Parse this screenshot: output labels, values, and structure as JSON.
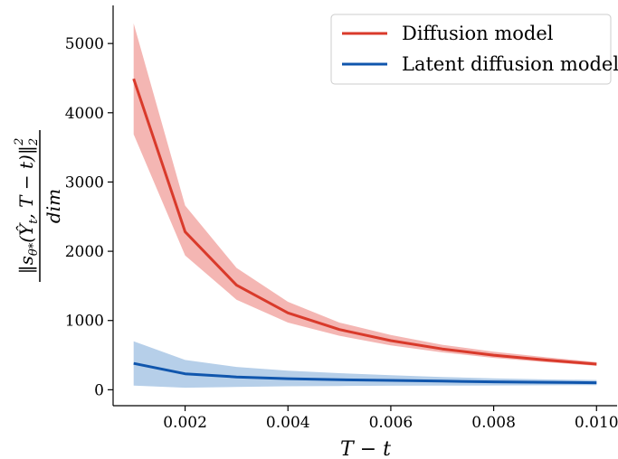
{
  "chart_data": {
    "type": "line",
    "xlabel": "T − t",
    "ylabel": {
      "numerator": "‖s",
      "theta": "θ*",
      "args": "(Ŷ",
      "sub_t": "t",
      "rest": ", T − t)‖",
      "sub2": "2",
      "sup2": "2",
      "denominator": "dim"
    },
    "xlim": [
      0.0006,
      0.0104
    ],
    "ylim": [
      -230,
      5550
    ],
    "xticks": [
      0.002,
      0.004,
      0.006,
      0.008,
      0.01
    ],
    "xtick_labels": [
      "0.002",
      "0.004",
      "0.006",
      "0.008",
      "0.010"
    ],
    "yticks": [
      0,
      1000,
      2000,
      3000,
      4000,
      5000
    ],
    "ytick_labels": [
      "0",
      "1000",
      "2000",
      "3000",
      "4000",
      "5000"
    ],
    "grid": false,
    "legend_position": "top-right",
    "x": [
      0.001,
      0.002,
      0.003,
      0.004,
      0.005,
      0.006,
      0.007,
      0.008,
      0.009,
      0.01
    ],
    "series": [
      {
        "name": "Diffusion model",
        "color": "#d93a2b",
        "band_color": "#f4b6b3",
        "values": [
          4490,
          2280,
          1510,
          1110,
          870,
          710,
          590,
          500,
          430,
          370
        ],
        "lower": [
          3690,
          1940,
          1300,
          970,
          780,
          640,
          540,
          460,
          400,
          345
        ],
        "upper": [
          5290,
          2660,
          1760,
          1270,
          970,
          790,
          650,
          550,
          470,
          400
        ]
      },
      {
        "name": "Latent diffusion model",
        "color": "#1056ad",
        "band_color": "#b6cfe9",
        "values": [
          380,
          230,
          185,
          160,
          145,
          135,
          125,
          115,
          108,
          102
        ],
        "lower": [
          60,
          30,
          40,
          50,
          55,
          58,
          60,
          62,
          65,
          68
        ],
        "upper": [
          700,
          430,
          330,
          275,
          240,
          210,
          185,
          165,
          150,
          140
        ]
      }
    ]
  }
}
